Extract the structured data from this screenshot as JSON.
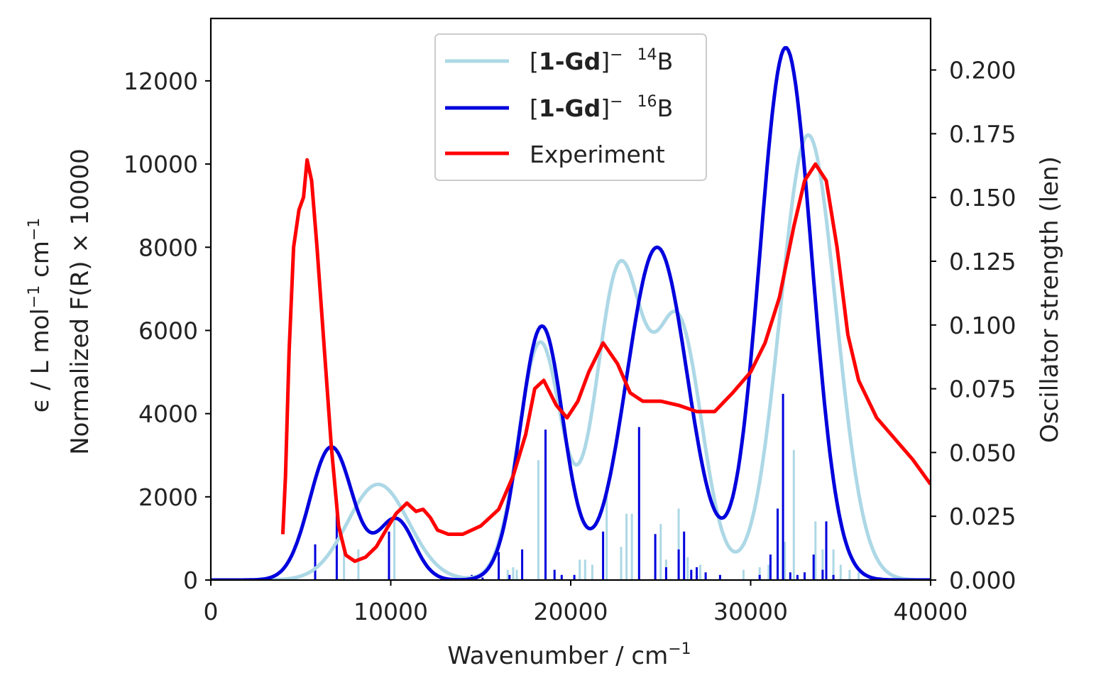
{
  "chart_data": {
    "type": "line",
    "xlabel": "Wavenumber / cm",
    "xlabel_sup": "−1",
    "ylabel_line1": {
      "pre": "ϵ / L mol",
      "sup1": "−1",
      "mid": " cm",
      "sup2": "−1"
    },
    "ylabel_line2": "Normalized F(R) × 10000",
    "y2label": "Oscillator strength (len)",
    "xlim": [
      0,
      40000
    ],
    "ylim": [
      0,
      13500
    ],
    "y2lim": [
      0,
      0.2202
    ],
    "xticks": [
      "0",
      "10000",
      "20000",
      "30000",
      "40000"
    ],
    "xtick_values": [
      0,
      10000,
      20000,
      30000,
      40000
    ],
    "yticks": [
      "0",
      "2000",
      "4000",
      "6000",
      "8000",
      "10000",
      "12000"
    ],
    "ytick_values": [
      0,
      2000,
      4000,
      6000,
      8000,
      10000,
      12000
    ],
    "y2ticks": [
      "0.000",
      "0.025",
      "0.050",
      "0.075",
      "0.100",
      "0.125",
      "0.150",
      "0.175",
      "0.200"
    ],
    "y2tick_values": [
      0,
      0.025,
      0.05,
      0.075,
      0.1,
      0.125,
      0.15,
      0.175,
      0.2
    ],
    "legend_position": "top-center",
    "legend": [
      {
        "bracket_text": "1-Gd",
        "superscript": "14",
        "suffix": "B",
        "color": "#add8e6"
      },
      {
        "bracket_text": "1-Gd",
        "superscript": "16",
        "suffix": "B",
        "color": "#0000dd"
      },
      {
        "label": "Experiment",
        "color": "#ff0000"
      }
    ],
    "series": [
      {
        "color": "#add8e6",
        "peaks": [
          [
            9300,
            2300,
            1700
          ],
          [
            18300,
            5700,
            1200
          ],
          [
            22700,
            7400,
            1300
          ],
          [
            26000,
            6100,
            1300
          ],
          [
            33200,
            10700,
            1550
          ]
        ]
      },
      {
        "color": "#0000dd",
        "peaks": [
          [
            6700,
            3200,
            1200
          ],
          [
            10300,
            1450,
            1000
          ],
          [
            18400,
            6100,
            1200
          ],
          [
            24800,
            8000,
            1700
          ],
          [
            31950,
            12800,
            1450
          ]
        ]
      },
      {
        "color": "#ff0000",
        "x": [
          4000,
          4150,
          4350,
          4600,
          4900,
          5150,
          5350,
          5600,
          5900,
          6300,
          6700,
          7100,
          7500,
          8000,
          8600,
          9200,
          9800,
          10300,
          10900,
          11400,
          11800,
          12200,
          12600,
          13200,
          14000,
          15000,
          16000,
          16800,
          17500,
          18000,
          18500,
          19200,
          19800,
          20400,
          21000,
          21800,
          22600,
          23300,
          24000,
          25000,
          26000,
          27000,
          28000,
          29000,
          30000,
          30800,
          31600,
          32400,
          33000,
          33600,
          34200,
          34800,
          35400,
          36000,
          37000,
          38000,
          39000,
          40000
        ],
        "y": [
          1100,
          2500,
          5500,
          8000,
          8900,
          9200,
          10100,
          9600,
          8000,
          5600,
          3200,
          1300,
          600,
          450,
          550,
          800,
          1250,
          1600,
          1850,
          1650,
          1700,
          1500,
          1200,
          1100,
          1100,
          1300,
          1700,
          2500,
          3500,
          4600,
          4800,
          4200,
          3900,
          4300,
          5000,
          5700,
          5200,
          4500,
          4300,
          4300,
          4200,
          4050,
          4050,
          4500,
          5000,
          5700,
          6800,
          8500,
          9600,
          10000,
          9600,
          8000,
          5900,
          4800,
          3900,
          3400,
          2900,
          2300
        ]
      }
    ],
    "stick_series": [
      {
        "color": "#add8e6",
        "sticks": [
          [
            7400,
            0.012
          ],
          [
            8200,
            0.012
          ],
          [
            10200,
            0.026
          ],
          [
            16500,
            0.004
          ],
          [
            16800,
            0.005
          ],
          [
            17000,
            0.004
          ],
          [
            18200,
            0.047
          ],
          [
            20500,
            0.008
          ],
          [
            20800,
            0.008
          ],
          [
            21200,
            0.006
          ],
          [
            22000,
            0.033
          ],
          [
            22800,
            0.013
          ],
          [
            23100,
            0.026
          ],
          [
            23400,
            0.026
          ],
          [
            25000,
            0.022
          ],
          [
            25300,
            0.008
          ],
          [
            26000,
            0.028
          ],
          [
            26500,
            0.009
          ],
          [
            27200,
            0.006
          ],
          [
            29600,
            0.004
          ],
          [
            30500,
            0.005
          ],
          [
            31000,
            0.006
          ],
          [
            31900,
            0.015
          ],
          [
            32400,
            0.051
          ],
          [
            33600,
            0.023
          ],
          [
            34000,
            0.012
          ],
          [
            34600,
            0.012
          ],
          [
            35000,
            0.006
          ],
          [
            35500,
            0.004
          ],
          [
            36000,
            0.003
          ]
        ]
      },
      {
        "color": "#0000dd",
        "sticks": [
          [
            5800,
            0.014
          ],
          [
            7000,
            0.031
          ],
          [
            9900,
            0.019
          ],
          [
            14500,
            0.002
          ],
          [
            15100,
            0.001
          ],
          [
            16000,
            0.011
          ],
          [
            16600,
            0.002
          ],
          [
            17300,
            0.012
          ],
          [
            18600,
            0.059
          ],
          [
            19100,
            0.004
          ],
          [
            19500,
            0.002
          ],
          [
            20200,
            0.002
          ],
          [
            21800,
            0.019
          ],
          [
            23800,
            0.06
          ],
          [
            24700,
            0.018
          ],
          [
            25300,
            0.005
          ],
          [
            26000,
            0.012
          ],
          [
            26300,
            0.019
          ],
          [
            26700,
            0.004
          ],
          [
            27000,
            0.005
          ],
          [
            27500,
            0.003
          ],
          [
            28300,
            0.002
          ],
          [
            30500,
            0.002
          ],
          [
            31100,
            0.01
          ],
          [
            31500,
            0.028
          ],
          [
            31800,
            0.073
          ],
          [
            32200,
            0.003
          ],
          [
            32600,
            0.002
          ],
          [
            33000,
            0.003
          ],
          [
            33500,
            0.01
          ],
          [
            34000,
            0.004
          ],
          [
            34200,
            0.023
          ],
          [
            34600,
            0.002
          ]
        ]
      }
    ]
  }
}
